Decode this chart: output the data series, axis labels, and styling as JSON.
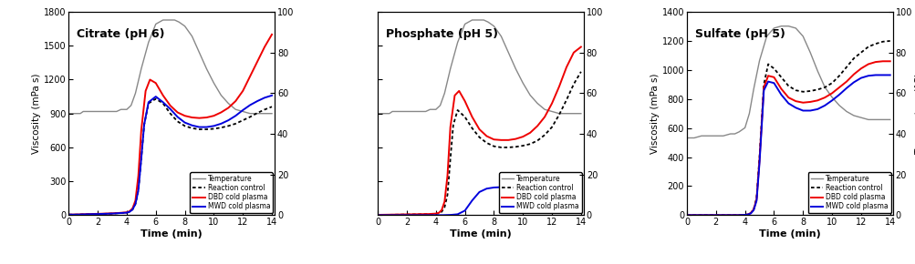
{
  "panels": [
    {
      "title": "Citrate (pH 6)",
      "ylim_visc": [
        0,
        1800
      ],
      "ylim_temp": [
        0,
        100
      ],
      "yticks_visc": [
        0,
        300,
        600,
        900,
        1200,
        1500,
        1800
      ],
      "yticks_temp": [
        0,
        20,
        40,
        60,
        80,
        100
      ],
      "show_ylabel_left": true,
      "show_ylabel_right": false,
      "show_ylabel_right_last": false,
      "temp_x": [
        0,
        0.3,
        0.8,
        1.0,
        1.5,
        2.0,
        2.5,
        3.0,
        3.3,
        3.6,
        4.0,
        4.3,
        4.6,
        5.0,
        5.5,
        6.0,
        6.5,
        7.0,
        7.3,
        7.6,
        8.0,
        8.5,
        9.0,
        9.5,
        10.0,
        10.5,
        11.0,
        11.5,
        12.0,
        12.5,
        13.0,
        13.5,
        14.0
      ],
      "temp_y": [
        50,
        50,
        50,
        51,
        51,
        51,
        51,
        51,
        51,
        52,
        52,
        54,
        60,
        72,
        85,
        94,
        96,
        96,
        96,
        95,
        93,
        88,
        80,
        72,
        65,
        59,
        55,
        52,
        51,
        50,
        50,
        50,
        50
      ],
      "rc_x": [
        0,
        0.5,
        1.0,
        1.5,
        2.0,
        2.5,
        3.0,
        3.5,
        4.0,
        4.2,
        4.4,
        4.6,
        4.8,
        5.0,
        5.2,
        5.5,
        6.0,
        6.5,
        7.0,
        7.5,
        8.0,
        8.5,
        9.0,
        9.5,
        10.0,
        10.5,
        11.0,
        11.5,
        12.0,
        12.5,
        13.0,
        13.5,
        14.0
      ],
      "rc_y": [
        5,
        5,
        7,
        9,
        10,
        12,
        14,
        18,
        22,
        30,
        50,
        100,
        220,
        500,
        800,
        990,
        1030,
        990,
        900,
        830,
        790,
        770,
        760,
        760,
        765,
        775,
        790,
        810,
        840,
        870,
        905,
        935,
        960
      ],
      "dbd_x": [
        0,
        0.5,
        1.0,
        1.5,
        2.0,
        2.5,
        3.0,
        3.5,
        4.0,
        4.2,
        4.4,
        4.6,
        4.8,
        5.0,
        5.3,
        5.6,
        6.0,
        6.5,
        7.0,
        7.5,
        8.0,
        8.5,
        9.0,
        9.5,
        10.0,
        10.5,
        11.0,
        11.5,
        12.0,
        12.5,
        13.0,
        13.5,
        14.0
      ],
      "dbd_y": [
        5,
        6,
        8,
        10,
        12,
        14,
        16,
        20,
        25,
        35,
        60,
        130,
        350,
        750,
        1100,
        1200,
        1170,
        1060,
        970,
        910,
        880,
        865,
        860,
        865,
        880,
        910,
        950,
        1010,
        1100,
        1230,
        1360,
        1490,
        1600
      ],
      "mwd_x": [
        0,
        0.5,
        1.0,
        1.5,
        2.0,
        2.5,
        3.0,
        3.5,
        4.0,
        4.2,
        4.4,
        4.6,
        4.8,
        5.0,
        5.2,
        5.5,
        6.0,
        6.5,
        7.0,
        7.5,
        8.0,
        8.5,
        9.0,
        9.5,
        10.0,
        10.5,
        11.0,
        11.5,
        12.0,
        12.5,
        13.0,
        13.5,
        14.0
      ],
      "mwd_y": [
        5,
        5,
        7,
        9,
        10,
        12,
        14,
        18,
        22,
        30,
        50,
        100,
        220,
        500,
        800,
        1000,
        1050,
        1000,
        940,
        870,
        820,
        795,
        780,
        780,
        790,
        810,
        840,
        880,
        930,
        975,
        1010,
        1040,
        1060
      ]
    },
    {
      "title": "Phosphate (pH 5)",
      "ylim_visc": [
        0,
        1800
      ],
      "ylim_temp": [
        0,
        100
      ],
      "yticks_visc": [
        0,
        300,
        600,
        900,
        1200,
        1500,
        1800
      ],
      "yticks_temp": [
        0,
        20,
        40,
        60,
        80,
        100
      ],
      "show_ylabel_left": false,
      "show_ylabel_right": false,
      "show_ylabel_right_last": false,
      "temp_x": [
        0,
        0.3,
        0.8,
        1.0,
        1.5,
        2.0,
        2.5,
        3.0,
        3.3,
        3.6,
        4.0,
        4.3,
        4.6,
        5.0,
        5.5,
        6.0,
        6.5,
        7.0,
        7.3,
        7.6,
        8.0,
        8.5,
        9.0,
        9.5,
        10.0,
        10.5,
        11.0,
        11.5,
        12.0,
        12.5,
        13.0,
        13.5,
        14.0
      ],
      "temp_y": [
        50,
        50,
        50,
        51,
        51,
        51,
        51,
        51,
        51,
        52,
        52,
        54,
        60,
        72,
        85,
        94,
        96,
        96,
        96,
        95,
        93,
        88,
        80,
        72,
        65,
        59,
        55,
        52,
        51,
        50,
        50,
        50,
        50
      ],
      "rc_x": [
        0,
        0.5,
        1.0,
        1.5,
        2.0,
        2.5,
        3.0,
        3.5,
        4.0,
        4.2,
        4.4,
        4.6,
        4.8,
        5.0,
        5.2,
        5.5,
        6.0,
        6.5,
        7.0,
        7.5,
        8.0,
        8.5,
        9.0,
        9.5,
        10.0,
        10.5,
        11.0,
        11.5,
        12.0,
        12.5,
        13.0,
        13.5,
        14.0
      ],
      "rc_y": [
        3,
        3,
        4,
        5,
        6,
        7,
        8,
        9,
        12,
        16,
        30,
        70,
        180,
        500,
        800,
        930,
        870,
        770,
        690,
        640,
        610,
        600,
        600,
        605,
        615,
        630,
        660,
        710,
        780,
        890,
        1020,
        1160,
        1270
      ],
      "dbd_x": [
        0,
        0.5,
        1.0,
        1.5,
        2.0,
        2.5,
        3.0,
        3.5,
        4.0,
        4.2,
        4.4,
        4.6,
        4.8,
        5.0,
        5.3,
        5.6,
        6.0,
        6.5,
        7.0,
        7.5,
        8.0,
        8.5,
        9.0,
        9.5,
        10.0,
        10.5,
        11.0,
        11.5,
        12.0,
        12.5,
        13.0,
        13.5,
        14.0
      ],
      "dbd_y": [
        3,
        4,
        5,
        6,
        7,
        8,
        9,
        10,
        14,
        20,
        45,
        120,
        350,
        780,
        1060,
        1100,
        1010,
        870,
        760,
        700,
        670,
        665,
        665,
        675,
        695,
        730,
        790,
        870,
        990,
        1140,
        1310,
        1440,
        1490
      ],
      "mwd_x": [
        0,
        0.5,
        1.0,
        1.5,
        2.0,
        2.5,
        3.0,
        3.5,
        4.0,
        4.2,
        4.5,
        5.0,
        5.5,
        6.0,
        6.5,
        7.0,
        7.5,
        8.0,
        8.5,
        9.0,
        9.5,
        10.0,
        10.5,
        11.0,
        11.5,
        12.0,
        12.5,
        13.0,
        13.5,
        14.0
      ],
      "mwd_y": [
        0,
        0,
        0,
        0,
        0,
        0,
        0,
        0,
        0,
        0,
        0,
        2,
        8,
        40,
        130,
        205,
        235,
        245,
        248,
        248,
        247,
        245,
        244,
        243,
        242,
        241,
        240,
        240,
        240,
        240
      ]
    },
    {
      "title": "Sulfate (pH 5)",
      "ylim_visc": [
        0,
        1400
      ],
      "ylim_temp": [
        0,
        100
      ],
      "yticks_visc": [
        0,
        200,
        400,
        600,
        800,
        1000,
        1200,
        1400
      ],
      "yticks_temp": [
        0,
        20,
        40,
        60,
        80,
        100
      ],
      "show_ylabel_left": true,
      "show_ylabel_right": false,
      "show_ylabel_right_last": true,
      "temp_x": [
        0,
        0.5,
        1.0,
        1.5,
        2.0,
        2.5,
        3.0,
        3.3,
        3.6,
        4.0,
        4.3,
        4.6,
        5.0,
        5.5,
        6.0,
        6.5,
        7.0,
        7.5,
        8.0,
        8.5,
        9.0,
        9.5,
        10.0,
        10.5,
        11.0,
        11.5,
        12.0,
        12.5,
        13.0,
        13.5,
        14.0
      ],
      "temp_y": [
        38,
        38,
        39,
        39,
        39,
        39,
        40,
        40,
        41,
        43,
        50,
        62,
        76,
        88,
        92,
        93,
        93,
        92,
        88,
        80,
        71,
        63,
        58,
        54,
        51,
        49,
        48,
        47,
        47,
        47,
        47
      ],
      "rc_x": [
        0,
        0.5,
        1.0,
        1.5,
        2.0,
        2.5,
        3.0,
        3.5,
        4.0,
        4.2,
        4.4,
        4.6,
        4.8,
        5.0,
        5.3,
        5.6,
        6.0,
        6.5,
        7.0,
        7.5,
        8.0,
        8.5,
        9.0,
        9.5,
        10.0,
        10.5,
        11.0,
        11.5,
        12.0,
        12.5,
        13.0,
        13.5,
        14.0
      ],
      "rc_y": [
        0,
        0,
        0,
        0,
        0,
        0,
        0,
        0,
        2,
        5,
        15,
        40,
        120,
        400,
        900,
        1040,
        1010,
        950,
        890,
        860,
        850,
        855,
        865,
        880,
        910,
        960,
        1020,
        1080,
        1120,
        1160,
        1180,
        1195,
        1200
      ],
      "dbd_x": [
        0,
        0.5,
        1.0,
        1.5,
        2.0,
        2.5,
        3.0,
        3.5,
        4.0,
        4.2,
        4.4,
        4.6,
        4.8,
        5.0,
        5.3,
        5.6,
        6.0,
        6.5,
        7.0,
        7.5,
        8.0,
        8.5,
        9.0,
        9.5,
        10.0,
        10.5,
        11.0,
        11.5,
        12.0,
        12.5,
        13.0,
        13.5,
        14.0
      ],
      "dbd_y": [
        0,
        0,
        0,
        0,
        0,
        0,
        0,
        0,
        2,
        5,
        15,
        40,
        110,
        380,
        880,
        960,
        950,
        870,
        810,
        785,
        775,
        780,
        790,
        810,
        840,
        880,
        920,
        970,
        1010,
        1040,
        1055,
        1060,
        1060
      ],
      "mwd_x": [
        0,
        0.5,
        1.0,
        1.5,
        2.0,
        2.5,
        3.0,
        3.5,
        4.0,
        4.2,
        4.4,
        4.6,
        4.8,
        5.0,
        5.3,
        5.6,
        6.0,
        6.5,
        7.0,
        7.5,
        8.0,
        8.5,
        9.0,
        9.5,
        10.0,
        10.5,
        11.0,
        11.5,
        12.0,
        12.5,
        13.0,
        13.5,
        14.0
      ],
      "mwd_y": [
        0,
        0,
        0,
        0,
        0,
        0,
        0,
        0,
        2,
        5,
        12,
        35,
        100,
        360,
        860,
        920,
        910,
        830,
        770,
        740,
        720,
        720,
        730,
        755,
        790,
        830,
        875,
        915,
        945,
        960,
        965,
        965,
        965
      ]
    }
  ],
  "colors": {
    "temp": "#888888",
    "rc": "#000000",
    "dbd": "#EE0000",
    "mwd": "#0000DD"
  },
  "legend_labels": {
    "temp": "Temperature",
    "rc": "Reaction control",
    "dbd": "DBD cold plasma",
    "mwd": "MWD cold plasma"
  },
  "xlabel": "Time (min)",
  "ylabel_visc": "Viscosity (mPa s)",
  "ylabel_temp": "Temperature (°C)",
  "xticks": [
    0,
    2,
    4,
    6,
    8,
    10,
    12,
    14
  ],
  "xlim": [
    0,
    14.2
  ]
}
